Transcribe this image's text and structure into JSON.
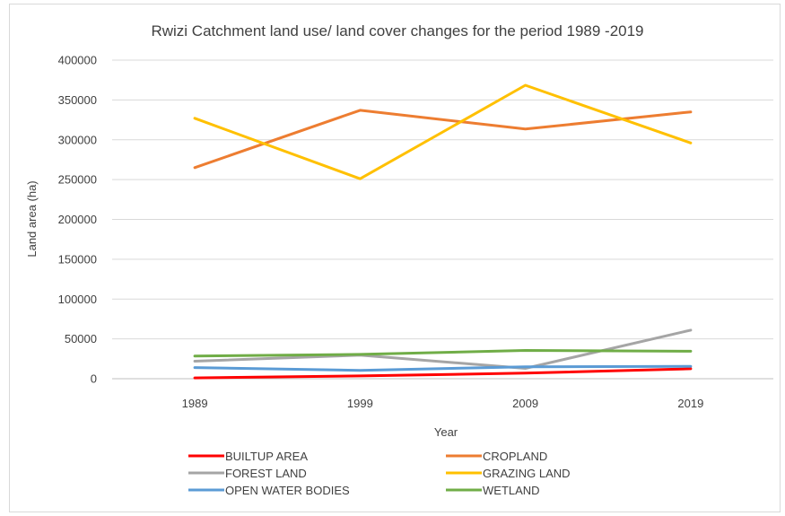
{
  "chart_data": {
    "type": "line",
    "title": "Rwizi Catchment land use/ land cover changes for the period 1989 -2019",
    "xlabel": "Year",
    "ylabel": "Land area (ha)",
    "categories": [
      "1989",
      "1999",
      "2009",
      "2019"
    ],
    "ylim": [
      0,
      400000
    ],
    "yticks": [
      "0",
      "50000",
      "100000",
      "150000",
      "200000",
      "250000",
      "300000",
      "350000",
      "400000"
    ],
    "grid": true,
    "legend_position": "bottom",
    "series": [
      {
        "name": "BUILTUP AREA",
        "color": "#ff0000",
        "values": [
          1000,
          3500,
          7000,
          12500
        ]
      },
      {
        "name": "CROPLAND",
        "color": "#ed7d31",
        "values": [
          265000,
          337000,
          313500,
          335000
        ]
      },
      {
        "name": "FOREST LAND",
        "color": "#a5a5a5",
        "values": [
          22000,
          29500,
          13000,
          61000
        ]
      },
      {
        "name": "GRAZING LAND",
        "color": "#ffc000",
        "values": [
          327000,
          251000,
          368500,
          296000
        ]
      },
      {
        "name": "OPEN WATER BODIES",
        "color": "#5b9bd5",
        "values": [
          14000,
          10500,
          15000,
          15500
        ]
      },
      {
        "name": "WETLAND",
        "color": "#70ad47",
        "values": [
          28500,
          30500,
          35500,
          34500
        ]
      }
    ]
  }
}
